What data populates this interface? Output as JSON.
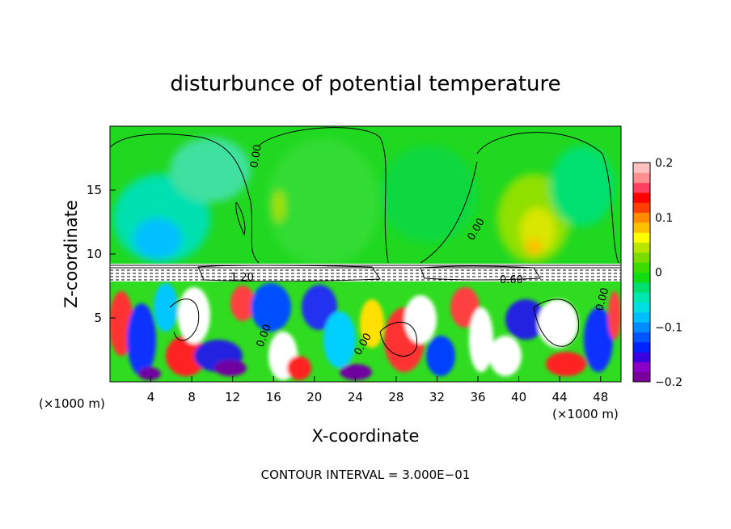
{
  "chart_data": {
    "type": "heatmap",
    "title": "disturbunce of potential temperature",
    "xlabel": "X-coordinate",
    "ylabel": "Z-coordinate",
    "x_unit": "(×1000 m)",
    "x_unit_right": "(×1000 m)",
    "xlim": [
      0,
      50
    ],
    "ylim": [
      0,
      20
    ],
    "x_ticks": [
      4,
      8,
      12,
      16,
      20,
      24,
      28,
      32,
      36,
      40,
      44,
      48
    ],
    "y_ticks": [
      5,
      10,
      15
    ],
    "colorbar": {
      "min": -0.2,
      "max": 0.2,
      "tick_values": [
        0.2,
        0.1,
        0,
        -0.1,
        -0.2
      ],
      "tick_labels": [
        "0.2",
        "0.1",
        "0",
        "−0.1",
        "−0.2"
      ],
      "colors": [
        "#7a0099",
        "#8a00c8",
        "#3a00e0",
        "#0022ff",
        "#0055ff",
        "#008cff",
        "#00bfff",
        "#00e0e0",
        "#00e8b0",
        "#00e070",
        "#10dc10",
        "#3cdc00",
        "#7adc00",
        "#b8e600",
        "#ffff00",
        "#ffc000",
        "#ff8c00",
        "#ff4000",
        "#ff0000",
        "#ff4060",
        "#ff9090",
        "#ffc0c0"
      ]
    },
    "contour_interval_text": "CONTOUR INTERVAL = 3.000E−01",
    "contour_labels": [
      "0.00",
      "0.00",
      "1.20",
      "0.60",
      "0.00",
      "0.00",
      "0.00"
    ]
  }
}
